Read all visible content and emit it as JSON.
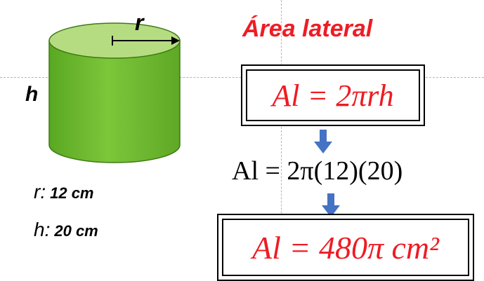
{
  "title": "Área lateral",
  "diagram": {
    "label_r": "r",
    "label_h": "h",
    "given": [
      {
        "key": "r:",
        "value": "12 cm"
      },
      {
        "key": "h:",
        "value": "20 cm"
      }
    ]
  },
  "formula": {
    "general": "Al = 2πrh",
    "substitution": "Al = 2π(12)(20)",
    "result": "Al = 480π cm²"
  },
  "colors": {
    "accent": "#ee1c24",
    "cylinder_body": "#6cbc2c",
    "cylinder_top": "#b6dc82",
    "arrow": "#4472c4"
  }
}
